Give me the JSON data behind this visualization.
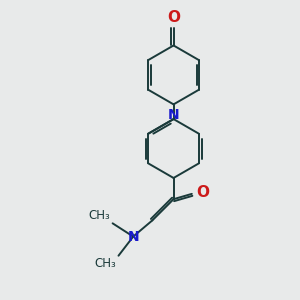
{
  "bg_color": "#e8eaea",
  "bond_color": "#1a3a3a",
  "nitrogen_color": "#1a1acc",
  "oxygen_color": "#cc1a1a",
  "line_width": 1.4,
  "font_size": 10,
  "fig_size": [
    3.0,
    3.0
  ],
  "dpi": 100,
  "xlim": [
    0,
    10
  ],
  "ylim": [
    0,
    10
  ]
}
